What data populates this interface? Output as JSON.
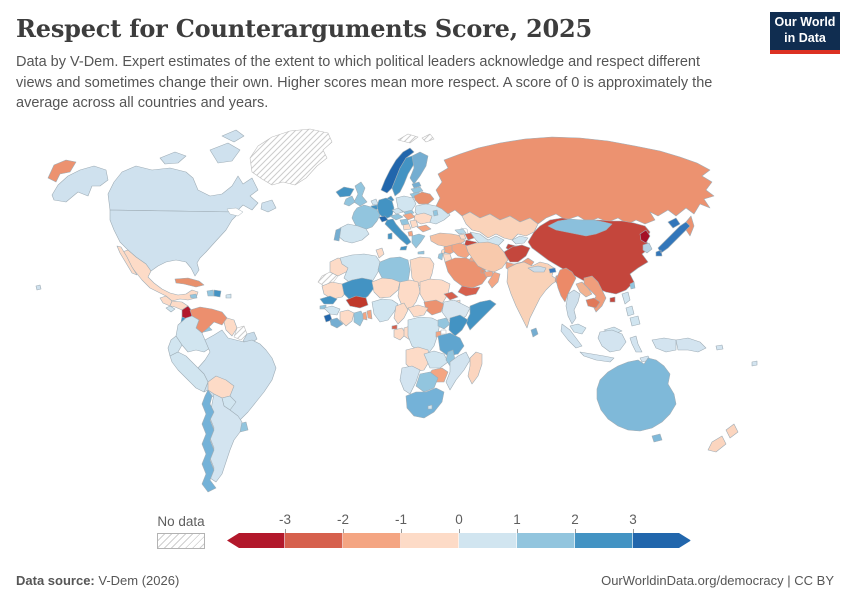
{
  "header": {
    "title": "Respect for Counterarguments Score, 2025",
    "subtitle": "Data by V-Dem. Expert estimates of the extent to which political leaders acknowledge and respect different views and sometimes change their own. Higher scores mean more respect. A score of 0 is approximately the average across all countries and years.",
    "logo": {
      "line1": "Our World",
      "line2": "in Data",
      "bg_color": "#102d50",
      "accent_color": "#dc3122"
    }
  },
  "legend": {
    "no_data_label": "No data",
    "ticks": [
      "-3",
      "-2",
      "-1",
      "0",
      "1",
      "2",
      "3"
    ],
    "colors": [
      "#b2182b",
      "#d6604d",
      "#f4a582",
      "#fddbc7",
      "#d1e5f0",
      "#92c5de",
      "#4393c3",
      "#2166ac"
    ]
  },
  "footer": {
    "source_label": "Data source:",
    "source_value": " V-Dem (2026)",
    "right_url": "OurWorldinData.org/democracy",
    "right_sep": " | ",
    "right_license": "CC BY"
  },
  "chart_data": {
    "type": "heatmap",
    "subtype": "world-choropleth",
    "title": "Respect for Counterarguments Score, 2025",
    "value_range": [
      -3.5,
      3.5
    ],
    "legend_ticks": [
      -3,
      -2,
      -1,
      0,
      1,
      2,
      3
    ],
    "palette_diverging_red_blue": [
      "#b2182b",
      "#d6604d",
      "#f4a582",
      "#fddbc7",
      "#d1e5f0",
      "#92c5de",
      "#4393c3",
      "#2166ac"
    ],
    "no_data_regions": [
      "Greenland",
      "Western Sahara",
      "Suriname",
      "Svalbard"
    ],
    "countries": {
      "canada": {
        "name": "Canada",
        "value": 0.5,
        "color": "#cfe1ee"
      },
      "usa": {
        "name": "United States",
        "value": 0.5,
        "color": "#cfe1ee"
      },
      "mexico": {
        "name": "Mexico",
        "value": -0.4,
        "color": "#fddbc7"
      },
      "guatemala": {
        "name": "Guatemala",
        "value": -0.4,
        "color": "#fddbc7"
      },
      "honduras": {
        "name": "Honduras",
        "value": -0.3,
        "color": "#fddbc7"
      },
      "el_salvador": {
        "name": "El Salvador",
        "value": 0.3,
        "color": "#d1e5f0"
      },
      "nicaragua": {
        "name": "Nicaragua",
        "value": -3.2,
        "color": "#b2182b"
      },
      "costa_rica": {
        "name": "Costa Rica",
        "value": 2.0,
        "color": "#4393c3"
      },
      "panama": {
        "name": "Panama",
        "value": 1.0,
        "color": "#92c5de"
      },
      "cuba": {
        "name": "Cuba",
        "value": -1.6,
        "color": "#e8906c"
      },
      "jamaica": {
        "name": "Jamaica",
        "value": 1.0,
        "color": "#92c5de"
      },
      "haiti": {
        "name": "Haiti",
        "value": 1.0,
        "color": "#92c5de"
      },
      "dominican_republic": {
        "name": "Dominican Republic",
        "value": 1.8,
        "color": "#4393c3"
      },
      "puerto_rico": {
        "name": "Puerto Rico",
        "value": 0.4,
        "color": "#d1e5f0"
      },
      "venezuela": {
        "name": "Venezuela",
        "value": -1.5,
        "color": "#ec8f6e"
      },
      "colombia": {
        "name": "Colombia",
        "value": 0.4,
        "color": "#d1e5f0"
      },
      "ecuador": {
        "name": "Ecuador",
        "value": 0.4,
        "color": "#d1e5f0"
      },
      "guyana": {
        "name": "Guyana",
        "value": -0.3,
        "color": "#fddbc7"
      },
      "french_guiana": {
        "name": "French Guiana",
        "value": 0.5,
        "color": "#c8dcea"
      },
      "peru": {
        "name": "Peru",
        "value": 0.4,
        "color": "#d1e5f0"
      },
      "brazil": {
        "name": "Brazil",
        "value": 0.5,
        "color": "#cfe2ef"
      },
      "bolivia": {
        "name": "Bolivia",
        "value": -0.4,
        "color": "#fddbc7"
      },
      "paraguay": {
        "name": "Paraguay",
        "value": 0.3,
        "color": "#d1e5f0"
      },
      "uruguay": {
        "name": "Uruguay",
        "value": 1.2,
        "color": "#92c5de"
      },
      "argentina": {
        "name": "Argentina",
        "value": 0.5,
        "color": "#d3e4f0"
      },
      "chile": {
        "name": "Chile",
        "value": 1.5,
        "color": "#74b2d8"
      },
      "iceland": {
        "name": "Iceland",
        "value": 2.0,
        "color": "#4393c3"
      },
      "norway": {
        "name": "Norway",
        "value": 3.0,
        "color": "#2166ac"
      },
      "sweden": {
        "name": "Sweden",
        "value": 2.2,
        "color": "#4393c3"
      },
      "finland": {
        "name": "Finland",
        "value": 1.6,
        "color": "#74add1"
      },
      "denmark": {
        "name": "Denmark",
        "value": 2.0,
        "color": "#4393c3"
      },
      "uk": {
        "name": "United Kingdom",
        "value": 1.2,
        "color": "#92c5de"
      },
      "ireland": {
        "name": "Ireland",
        "value": 1.2,
        "color": "#92c5de"
      },
      "netherlands": {
        "name": "Netherlands",
        "value": 0.5,
        "color": "#d1e5f0"
      },
      "belgium": {
        "name": "Belgium",
        "value": 2.0,
        "color": "#4393c3"
      },
      "germany": {
        "name": "Germany",
        "value": 2.0,
        "color": "#4393c3"
      },
      "france": {
        "name": "France",
        "value": 1.2,
        "color": "#92c5de"
      },
      "spain": {
        "name": "Spain",
        "value": 0.5,
        "color": "#d1e5f0"
      },
      "portugal": {
        "name": "Portugal",
        "value": 1.5,
        "color": "#74add1"
      },
      "switzerland": {
        "name": "Switzerland",
        "value": 3.0,
        "color": "#2166ac"
      },
      "austria": {
        "name": "Austria",
        "value": 1.2,
        "color": "#92c5de"
      },
      "czechia": {
        "name": "Czechia",
        "value": 0.5,
        "color": "#d1e5f0"
      },
      "slovakia": {
        "name": "Slovakia",
        "value": 1.0,
        "color": "#92c5de"
      },
      "poland": {
        "name": "Poland",
        "value": 0.4,
        "color": "#d1e5f0"
      },
      "estonia": {
        "name": "Estonia",
        "value": 1.5,
        "color": "#74add1"
      },
      "latvia": {
        "name": "Latvia",
        "value": 1.2,
        "color": "#92c5de"
      },
      "lithuania": {
        "name": "Lithuania",
        "value": 1.2,
        "color": "#92c5de"
      },
      "belarus": {
        "name": "Belarus",
        "value": -1.5,
        "color": "#e8906c"
      },
      "ukraine": {
        "name": "Ukraine",
        "value": 0.4,
        "color": "#d1e5f0"
      },
      "moldova": {
        "name": "Moldova",
        "value": 1.0,
        "color": "#92c5de"
      },
      "hungary": {
        "name": "Hungary",
        "value": -1.0,
        "color": "#f4a582"
      },
      "romania": {
        "name": "Romania",
        "value": -0.4,
        "color": "#fddbc7"
      },
      "croatia": {
        "name": "Croatia",
        "value": 1.0,
        "color": "#92c5de"
      },
      "bosnia": {
        "name": "Bosnia and Herzegovina",
        "value": -0.3,
        "color": "#fddbc7"
      },
      "serbia": {
        "name": "Serbia",
        "value": -0.5,
        "color": "#fddbc7"
      },
      "albania": {
        "name": "Albania",
        "value": -0.8,
        "color": "#f4a582"
      },
      "bulgaria": {
        "name": "Bulgaria",
        "value": -1.0,
        "color": "#f4a582"
      },
      "greece": {
        "name": "Greece",
        "value": 1.2,
        "color": "#92c5de"
      },
      "italy": {
        "name": "Italy",
        "value": 1.8,
        "color": "#4393c3"
      },
      "russia": {
        "name": "Russia",
        "value": -1.4,
        "color": "#ec9270"
      },
      "turkey": {
        "name": "Turkey",
        "value": -0.8,
        "color": "#f6c2a4"
      },
      "georgia": {
        "name": "Georgia",
        "value": 0.8,
        "color": "#b5d7e8"
      },
      "armenia": {
        "name": "Armenia",
        "value": -0.4,
        "color": "#fddbc7"
      },
      "azerbaijan": {
        "name": "Azerbaijan",
        "value": -2.0,
        "color": "#d6604d"
      },
      "syria": {
        "name": "Syria",
        "value": -1.0,
        "color": "#f4a582"
      },
      "lebanon": {
        "name": "Lebanon",
        "value": -0.4,
        "color": "#fddbc7"
      },
      "israel": {
        "name": "Israel",
        "value": 1.0,
        "color": "#92c5de"
      },
      "jordan": {
        "name": "Jordan",
        "value": -0.5,
        "color": "#fddbc7"
      },
      "iraq": {
        "name": "Iraq",
        "value": -1.0,
        "color": "#f4a582"
      },
      "saudi_arabia": {
        "name": "Saudi Arabia",
        "value": -1.5,
        "color": "#ec9270"
      },
      "kuwait": {
        "name": "Kuwait",
        "value": -1.0,
        "color": "#f4a582"
      },
      "qatar": {
        "name": "Qatar",
        "value": -1.4,
        "color": "#e8906c"
      },
      "uae": {
        "name": "United Arab Emirates",
        "value": -1.2,
        "color": "#f4a582"
      },
      "oman": {
        "name": "Oman",
        "value": -1.0,
        "color": "#f4a582"
      },
      "yemen": {
        "name": "Yemen",
        "value": -2.0,
        "color": "#d6604d"
      },
      "iran": {
        "name": "Iran",
        "value": -0.7,
        "color": "#f8c9ac"
      },
      "afghanistan": {
        "name": "Afghanistan",
        "value": -2.6,
        "color": "#c4473d"
      },
      "pakistan": {
        "name": "Pakistan",
        "value": -1.1,
        "color": "#f0a080"
      },
      "kazakhstan": {
        "name": "Kazakhstan",
        "value": -0.6,
        "color": "#fad3ba"
      },
      "uzbekistan": {
        "name": "Uzbekistan",
        "value": 0.3,
        "color": "#d1e5f0"
      },
      "turkmenistan": {
        "name": "Turkmenistan",
        "value": -2.7,
        "color": "#c4473d"
      },
      "kyrgyzstan": {
        "name": "Kyrgyzstan",
        "value": 0.3,
        "color": "#d1e5f0"
      },
      "tajikistan": {
        "name": "Tajikistan",
        "value": -2.5,
        "color": "#c4473d"
      },
      "morocco": {
        "name": "Morocco",
        "value": -0.4,
        "color": "#fddbc7"
      },
      "algeria": {
        "name": "Algeria",
        "value": 0.3,
        "color": "#d1e5f0"
      },
      "tunisia": {
        "name": "Tunisia",
        "value": -0.3,
        "color": "#fddbc7"
      },
      "libya": {
        "name": "Libya",
        "value": 1.0,
        "color": "#92c5de"
      },
      "egypt": {
        "name": "Egypt",
        "value": -0.4,
        "color": "#fbd9c4"
      },
      "mauritania": {
        "name": "Mauritania",
        "value": -0.5,
        "color": "#fddbc7"
      },
      "mali": {
        "name": "Mali",
        "value": 1.8,
        "color": "#4393c3"
      },
      "niger": {
        "name": "Niger",
        "value": -0.4,
        "color": "#fddbc7"
      },
      "chad": {
        "name": "Chad",
        "value": -0.5,
        "color": "#fddbc7"
      },
      "sudan": {
        "name": "Sudan",
        "value": -0.6,
        "color": "#fddbc7"
      },
      "south_sudan": {
        "name": "South Sudan",
        "value": -1.5,
        "color": "#ec9270"
      },
      "eritrea": {
        "name": "Eritrea",
        "value": -2.0,
        "color": "#d6604d"
      },
      "djibouti": {
        "name": "Djibouti",
        "value": -0.5,
        "color": "#fddbc7"
      },
      "ethiopia": {
        "name": "Ethiopia",
        "value": 0.3,
        "color": "#d9e6ef"
      },
      "somalia": {
        "name": "Somalia",
        "value": 1.8,
        "color": "#4393c3"
      },
      "senegal": {
        "name": "Senegal",
        "value": 2.0,
        "color": "#4393c3"
      },
      "guinea_bissau": {
        "name": "Guinea-Bissau",
        "value": 1.0,
        "color": "#92c5de"
      },
      "guinea": {
        "name": "Guinea",
        "value": 0.4,
        "color": "#d1e5f0"
      },
      "sierra_leone": {
        "name": "Sierra Leone",
        "value": 2.8,
        "color": "#2166ac"
      },
      "liberia": {
        "name": "Liberia",
        "value": 1.5,
        "color": "#74add1"
      },
      "ivory_coast": {
        "name": "Cote d'Ivoire",
        "value": -0.3,
        "color": "#fddbc7"
      },
      "ghana": {
        "name": "Ghana",
        "value": 1.3,
        "color": "#92c5de"
      },
      "togo": {
        "name": "Togo",
        "value": -1.0,
        "color": "#f4a582"
      },
      "benin": {
        "name": "Benin",
        "value": -0.9,
        "color": "#f4a582"
      },
      "burkina_faso": {
        "name": "Burkina Faso",
        "value": -2.8,
        "color": "#c0392b"
      },
      "nigeria": {
        "name": "Nigeria",
        "value": 0.4,
        "color": "#d1e5f0"
      },
      "cameroon": {
        "name": "Cameroon",
        "value": -0.5,
        "color": "#fddbc7"
      },
      "equatorial_guinea": {
        "name": "Equatorial Guinea",
        "value": -2.0,
        "color": "#d6604d"
      },
      "gabon": {
        "name": "Gabon",
        "value": -0.4,
        "color": "#fddbc7"
      },
      "congo": {
        "name": "Congo",
        "value": -0.5,
        "color": "#fddbc7"
      },
      "central_african_republic": {
        "name": "Central African Republic",
        "value": -0.4,
        "color": "#fddbc7"
      },
      "drc": {
        "name": "Democratic Republic of Congo",
        "value": 0.4,
        "color": "#d1e5f0"
      },
      "uganda": {
        "name": "Uganda",
        "value": 1.0,
        "color": "#92c5de"
      },
      "kenya": {
        "name": "Kenya",
        "value": 1.8,
        "color": "#4393c3"
      },
      "rwanda": {
        "name": "Rwanda",
        "value": -1.0,
        "color": "#f4a582"
      },
      "tanzania": {
        "name": "Tanzania",
        "value": 1.6,
        "color": "#5fa5cf"
      },
      "angola": {
        "name": "Angola",
        "value": -0.5,
        "color": "#fddbc7"
      },
      "zambia": {
        "name": "Zambia",
        "value": 0.4,
        "color": "#d1e5f0"
      },
      "malawi": {
        "name": "Malawi",
        "value": 1.2,
        "color": "#92c5de"
      },
      "mozambique": {
        "name": "Mozambique",
        "value": 0.4,
        "color": "#d3e4f0"
      },
      "zimbabwe": {
        "name": "Zimbabwe",
        "value": -1.0,
        "color": "#f4a582"
      },
      "botswana": {
        "name": "Botswana",
        "value": 1.3,
        "color": "#92c5de"
      },
      "namibia": {
        "name": "Namibia",
        "value": 0.5,
        "color": "#d3e4f0"
      },
      "south_africa": {
        "name": "South Africa",
        "value": 1.5,
        "color": "#74b2d8"
      },
      "lesotho": {
        "name": "Lesotho",
        "value": 0.4,
        "color": "#d1e5f0"
      },
      "madagascar": {
        "name": "Madagascar",
        "value": -0.4,
        "color": "#fbd5bf"
      },
      "china": {
        "name": "China",
        "value": -2.6,
        "color": "#c4463c"
      },
      "mongolia": {
        "name": "Mongolia",
        "value": 1.2,
        "color": "#8bc0dc"
      },
      "north_korea": {
        "name": "North Korea",
        "value": -3.5,
        "color": "#a50f26"
      },
      "south_korea": {
        "name": "South Korea",
        "value": 0.7,
        "color": "#b7d3e4"
      },
      "japan": {
        "name": "Japan",
        "value": 2.5,
        "color": "#3276ba"
      },
      "taiwan": {
        "name": "Taiwan",
        "value": 1.2,
        "color": "#92c5de"
      },
      "india": {
        "name": "India",
        "value": -0.5,
        "color": "#f9d2b8"
      },
      "nepal": {
        "name": "Nepal",
        "value": 0.3,
        "color": "#ccdce8"
      },
      "bhutan": {
        "name": "Bhutan",
        "value": 2.3,
        "color": "#3a7bbf"
      },
      "bangladesh": {
        "name": "Bangladesh",
        "value": -1.4,
        "color": "#ec9273"
      },
      "sri_lanka": {
        "name": "Sri Lanka",
        "value": 1.5,
        "color": "#74add1"
      },
      "myanmar": {
        "name": "Myanmar",
        "value": -1.6,
        "color": "#ec8a68"
      },
      "thailand": {
        "name": "Thailand",
        "value": 0.4,
        "color": "#cfe0ec"
      },
      "laos": {
        "name": "Laos",
        "value": -0.9,
        "color": "#f2b391"
      },
      "vietnam": {
        "name": "Vietnam",
        "value": -1.2,
        "color": "#f09e7c"
      },
      "cambodia": {
        "name": "Cambodia",
        "value": -1.8,
        "color": "#e0795a"
      },
      "malaysia": {
        "name": "Malaysia",
        "value": 0.4,
        "color": "#d1e5f0"
      },
      "indonesia": {
        "name": "Indonesia",
        "value": 0.4,
        "color": "#d3e4f0"
      },
      "philippines": {
        "name": "Philippines",
        "value": 0.4,
        "color": "#d1e5f0"
      },
      "papua_new_guinea": {
        "name": "Papua New Guinea",
        "value": 0.4,
        "color": "#d3e4f0"
      },
      "timor_leste": {
        "name": "Timor-Leste",
        "value": 0.5,
        "color": "#d3e4f0"
      },
      "solomon_islands": {
        "name": "Solomon Islands",
        "value": 0.4,
        "color": "#d3e4f0"
      },
      "fiji": {
        "name": "Fiji",
        "value": 0.4,
        "color": "#d3e4f0"
      },
      "australia": {
        "name": "Australia",
        "value": 1.4,
        "color": "#7fb9d9"
      },
      "new_zealand": {
        "name": "New Zealand",
        "value": -0.3,
        "color": "#fbd5bf"
      }
    }
  }
}
